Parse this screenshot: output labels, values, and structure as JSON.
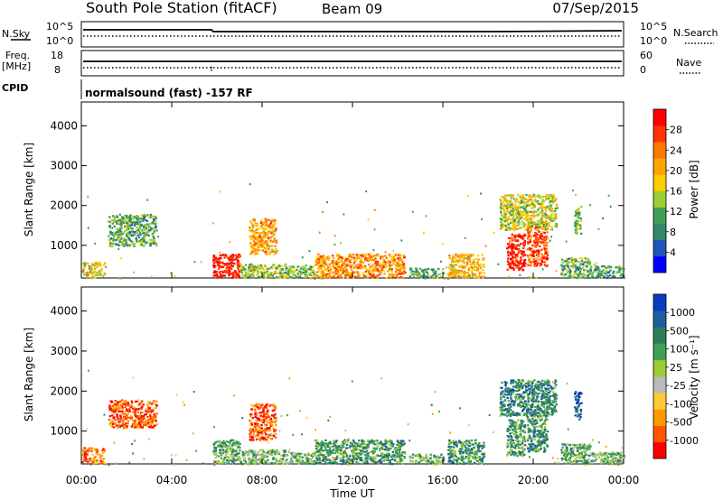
{
  "header": {
    "title": "South Pole Station (fitACF)",
    "beam": "Beam 09",
    "date": "07/Sep/2015"
  },
  "status_panels": {
    "nsky_label": "N.Sky",
    "nsearch_label": "N.Search",
    "freq_label_line1": "Freq.",
    "freq_label_line2": "[MHz]",
    "nave_label": "Nave",
    "cpid_label": "CPID",
    "nsky_ticks": [
      "10^5",
      "10^0"
    ],
    "nsearch_ticks": [
      "10^5",
      "10^0"
    ],
    "freq_ticks": [
      "18",
      "8"
    ],
    "nave_ticks": [
      "60",
      "0"
    ],
    "cpid_text": "normalsound (fast) -157 RF"
  },
  "chart_data": [
    {
      "type": "heatmap",
      "name": "power-panel",
      "ylabel": "Slant Range [km]",
      "xlabel": "",
      "xlim": [
        0,
        24
      ],
      "ylim": [
        180,
        4600
      ],
      "yticks": [
        1000,
        2000,
        3000,
        4000
      ],
      "colorbar": {
        "label": "Power [dB]",
        "ticks": [
          "4",
          "8",
          "12",
          "16",
          "20",
          "24",
          "28"
        ],
        "colors": [
          "#0000ff",
          "#2255bb",
          "#33886a",
          "#3fa055",
          "#9acd32",
          "#ffcc00",
          "#ffa500",
          "#ff7700",
          "#ff3300",
          "#ff0000"
        ]
      },
      "regions": [
        {
          "t0": 1.2,
          "t1": 3.3,
          "r0": 1000,
          "r1": 1800,
          "v": 0.35
        },
        {
          "t0": 0.0,
          "t1": 1.0,
          "r0": 200,
          "r1": 600,
          "v": 0.55
        },
        {
          "t0": 5.8,
          "t1": 7.0,
          "r0": 200,
          "r1": 800,
          "v": 0.95
        },
        {
          "t0": 7.4,
          "t1": 8.6,
          "r0": 800,
          "r1": 1700,
          "v": 0.65
        },
        {
          "t0": 7.0,
          "t1": 9.0,
          "r0": 200,
          "r1": 550,
          "v": 0.45
        },
        {
          "t0": 9.0,
          "t1": 10.3,
          "r0": 200,
          "r1": 500,
          "v": 0.4
        },
        {
          "t0": 10.3,
          "t1": 14.3,
          "r0": 200,
          "r1": 800,
          "v": 0.7
        },
        {
          "t0": 14.5,
          "t1": 16.0,
          "r0": 200,
          "r1": 450,
          "v": 0.35
        },
        {
          "t0": 16.2,
          "t1": 17.8,
          "r0": 200,
          "r1": 800,
          "v": 0.6
        },
        {
          "t0": 18.8,
          "t1": 19.6,
          "r0": 400,
          "r1": 1300,
          "v": 0.92
        },
        {
          "t0": 19.7,
          "t1": 20.6,
          "r0": 500,
          "r1": 1500,
          "v": 0.85
        },
        {
          "t0": 18.5,
          "t1": 21.0,
          "r0": 1400,
          "r1": 2300,
          "v": 0.5
        },
        {
          "t0": 21.2,
          "t1": 22.5,
          "r0": 200,
          "r1": 700,
          "v": 0.35
        },
        {
          "t0": 21.8,
          "t1": 22.1,
          "r0": 1300,
          "r1": 2000,
          "v": 0.4
        },
        {
          "t0": 22.5,
          "t1": 24.0,
          "r0": 200,
          "r1": 500,
          "v": 0.3
        }
      ]
    },
    {
      "type": "heatmap",
      "name": "velocity-panel",
      "ylabel": "Slant Range [km]",
      "xlabel": "Time UT",
      "xlim": [
        0,
        24
      ],
      "ylim": [
        180,
        4600
      ],
      "yticks": [
        1000,
        2000,
        3000,
        4000
      ],
      "xticks": [
        "00:00",
        "04:00",
        "08:00",
        "12:00",
        "16:00",
        "20:00",
        "00:00"
      ],
      "colorbar": {
        "label": "Velocity [m s⁻¹]",
        "ticks": [
          "-1000",
          "-500",
          "-100",
          "-25",
          "25",
          "100",
          "500",
          "1000"
        ],
        "colors": [
          "#ff0000",
          "#ff5500",
          "#ff9900",
          "#ffcc33",
          "#bbbbbb",
          "#9acd32",
          "#3fa055",
          "#2e7d5a",
          "#1f5fa0",
          "#0a3cc0"
        ]
      },
      "regions": [
        {
          "t0": 1.2,
          "t1": 3.3,
          "r0": 1100,
          "r1": 1800,
          "v": 0.15
        },
        {
          "t0": 0.0,
          "t1": 1.0,
          "r0": 200,
          "r1": 600,
          "v": 0.2
        },
        {
          "t0": 5.8,
          "t1": 7.0,
          "r0": 200,
          "r1": 800,
          "v": 0.65
        },
        {
          "t0": 7.4,
          "t1": 8.6,
          "r0": 800,
          "r1": 1700,
          "v": 0.15
        },
        {
          "t0": 7.0,
          "t1": 9.0,
          "r0": 200,
          "r1": 550,
          "v": 0.6
        },
        {
          "t0": 9.0,
          "t1": 10.3,
          "r0": 200,
          "r1": 500,
          "v": 0.6
        },
        {
          "t0": 10.3,
          "t1": 14.3,
          "r0": 200,
          "r1": 800,
          "v": 0.7
        },
        {
          "t0": 14.5,
          "t1": 16.0,
          "r0": 200,
          "r1": 450,
          "v": 0.6
        },
        {
          "t0": 16.2,
          "t1": 17.8,
          "r0": 200,
          "r1": 800,
          "v": 0.7
        },
        {
          "t0": 18.8,
          "t1": 19.6,
          "r0": 400,
          "r1": 1300,
          "v": 0.7
        },
        {
          "t0": 19.7,
          "t1": 20.6,
          "r0": 500,
          "r1": 1500,
          "v": 0.72
        },
        {
          "t0": 18.5,
          "t1": 21.0,
          "r0": 1400,
          "r1": 2300,
          "v": 0.75
        },
        {
          "t0": 21.2,
          "t1": 22.5,
          "r0": 200,
          "r1": 700,
          "v": 0.65
        },
        {
          "t0": 21.8,
          "t1": 22.1,
          "r0": 1300,
          "r1": 2000,
          "v": 0.9
        },
        {
          "t0": 22.5,
          "t1": 24.0,
          "r0": 200,
          "r1": 500,
          "v": 0.6
        }
      ]
    }
  ]
}
